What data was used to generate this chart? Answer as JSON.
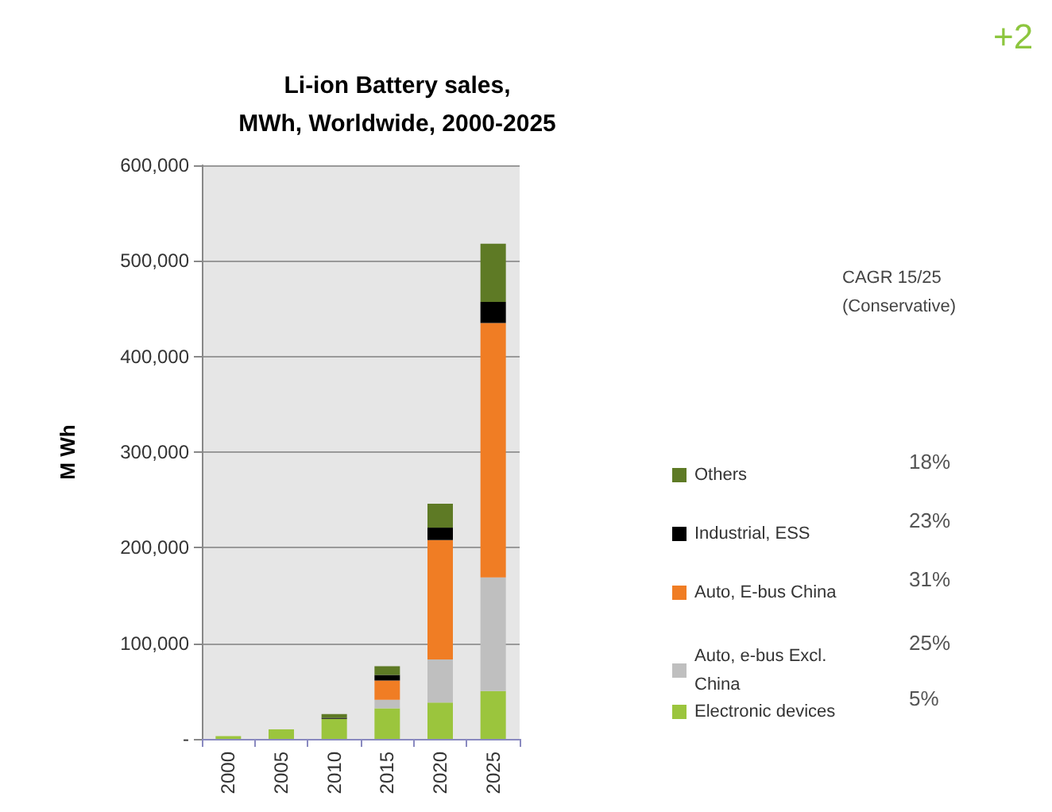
{
  "chart_data": {
    "type": "bar",
    "title": "Li-ion Battery sales,\nMWh, Worldwide, 2000-2025",
    "ylabel": "M Wh",
    "categories": [
      "2000",
      "2005",
      "2010",
      "2015",
      "2020",
      "2025"
    ],
    "stacked": true,
    "series": [
      {
        "name": "Electronic devices",
        "color": "#9bc53d",
        "values": [
          3000,
          10000,
          21000,
          32000,
          38000,
          50000
        ]
      },
      {
        "name": "Auto, e-bus Excl. China",
        "color": "#bfbfbf",
        "values": [
          0,
          0,
          0,
          9000,
          45000,
          119000
        ]
      },
      {
        "name": "Auto, E-bus China",
        "color": "#f07d24",
        "values": [
          0,
          0,
          0,
          20000,
          125000,
          266000
        ]
      },
      {
        "name": "Industrial, ESS",
        "color": "#000000",
        "values": [
          0,
          0,
          1000,
          6000,
          13000,
          22000
        ]
      },
      {
        "name": "Others",
        "color": "#5e7a25",
        "values": [
          0,
          0,
          4000,
          9000,
          25000,
          61000
        ]
      }
    ],
    "ylim": [
      0,
      600000
    ],
    "yticks": [
      {
        "value": 0,
        "label": "-"
      },
      {
        "value": 100000,
        "label": "100,000"
      },
      {
        "value": 200000,
        "label": "200,000"
      },
      {
        "value": 300000,
        "label": "300,000"
      },
      {
        "value": 400000,
        "label": "400,000"
      },
      {
        "value": 500000,
        "label": "500,000"
      },
      {
        "value": 600000,
        "label": "600,000"
      }
    ],
    "grid": "y",
    "legend": "right",
    "annotations": [
      "CAGR 15/25\n(Conservative)",
      "5%",
      "25%",
      "31%",
      "23%",
      "18%",
      "+2"
    ]
  }
}
